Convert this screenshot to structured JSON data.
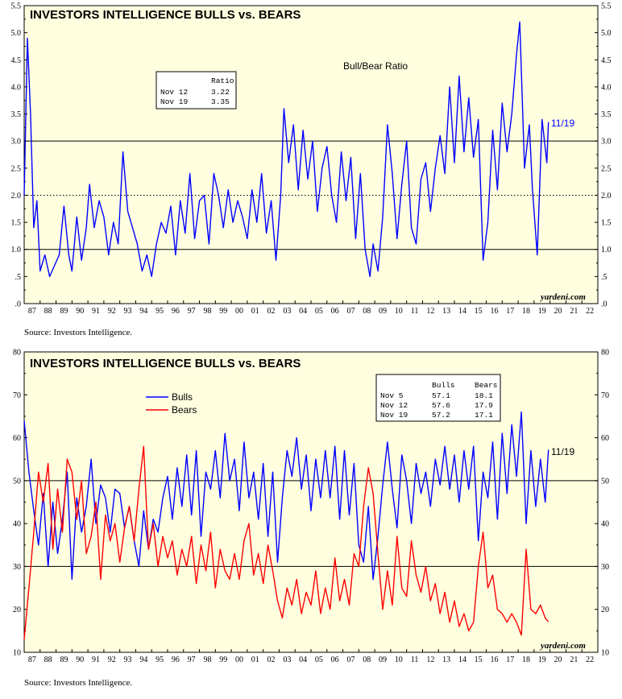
{
  "colors": {
    "background": "#FFFFE0",
    "bulls": "#0000FF",
    "bears": "#FF0000",
    "ratio": "#0000FF",
    "annotation": "#0000FF"
  },
  "chart_data": [
    {
      "type": "line",
      "title": "INVESTORS INTELLIGENCE BULLS vs. BEARS",
      "subtitle": "Bull/Bear Ratio",
      "ylim": [
        0,
        5.5
      ],
      "ytick_labels": [
        ".0",
        ".5",
        "1.0",
        "1.5",
        "2.0",
        "2.5",
        "3.0",
        "3.5",
        "4.0",
        "4.5",
        "5.0",
        "5.5"
      ],
      "xtick_labels": [
        "87",
        "88",
        "89",
        "90",
        "91",
        "92",
        "93",
        "94",
        "95",
        "96",
        "97",
        "98",
        "99",
        "00",
        "01",
        "02",
        "03",
        "04",
        "05",
        "06",
        "07",
        "08",
        "09",
        "10",
        "11",
        "12",
        "13",
        "14",
        "15",
        "16",
        "17",
        "18",
        "19",
        "20",
        "21",
        "22"
      ],
      "reference_lines": [
        1.0,
        2.0,
        3.0
      ],
      "grid": false,
      "series": [
        {
          "name": "Ratio",
          "x": [
            1987.0,
            1987.2,
            1987.4,
            1987.6,
            1987.8,
            1988.0,
            1988.3,
            1988.6,
            1988.9,
            1989.2,
            1989.5,
            1989.8,
            1990.0,
            1990.3,
            1990.6,
            1990.9,
            1991.1,
            1991.4,
            1991.7,
            1992.0,
            1992.3,
            1992.6,
            1992.9,
            1993.2,
            1993.5,
            1993.8,
            1994.1,
            1994.4,
            1994.7,
            1995.0,
            1995.3,
            1995.6,
            1995.9,
            1996.2,
            1996.5,
            1996.8,
            1997.1,
            1997.4,
            1997.7,
            1998.0,
            1998.3,
            1998.6,
            1998.9,
            1999.2,
            1999.5,
            1999.8,
            2000.1,
            2000.4,
            2000.7,
            2001.0,
            2001.3,
            2001.6,
            2001.9,
            2002.2,
            2002.5,
            2002.8,
            2003.1,
            2003.3,
            2003.6,
            2003.9,
            2004.2,
            2004.5,
            2004.8,
            2005.1,
            2005.4,
            2005.7,
            2006.0,
            2006.3,
            2006.6,
            2006.9,
            2007.2,
            2007.5,
            2007.8,
            2008.1,
            2008.4,
            2008.7,
            2008.9,
            2009.2,
            2009.5,
            2009.8,
            2010.1,
            2010.4,
            2010.7,
            2011.0,
            2011.3,
            2011.6,
            2011.9,
            2012.2,
            2012.5,
            2012.8,
            2013.1,
            2013.4,
            2013.7,
            2014.0,
            2014.3,
            2014.6,
            2014.9,
            2015.2,
            2015.5,
            2015.8,
            2016.1,
            2016.4,
            2016.7,
            2017.0,
            2017.3,
            2017.6,
            2017.9,
            2018.1,
            2018.4,
            2018.7,
            2018.9,
            2019.2,
            2019.5,
            2019.8,
            2019.9
          ],
          "values": [
            2.0,
            4.9,
            3.5,
            1.4,
            1.9,
            0.6,
            0.9,
            0.5,
            0.7,
            0.9,
            1.8,
            0.9,
            0.6,
            1.6,
            0.8,
            1.4,
            2.2,
            1.4,
            1.9,
            1.6,
            0.9,
            1.5,
            1.1,
            2.8,
            1.7,
            1.4,
            1.1,
            0.6,
            0.9,
            0.5,
            1.1,
            1.5,
            1.3,
            1.8,
            0.9,
            1.9,
            1.3,
            2.4,
            1.2,
            1.9,
            2.0,
            1.1,
            2.4,
            2.0,
            1.4,
            2.1,
            1.5,
            1.9,
            1.6,
            1.2,
            2.1,
            1.5,
            2.4,
            1.3,
            1.9,
            0.8,
            2.0,
            3.6,
            2.6,
            3.3,
            2.1,
            3.2,
            2.3,
            3.0,
            1.7,
            2.5,
            2.9,
            2.0,
            1.5,
            2.8,
            1.9,
            2.7,
            1.2,
            2.4,
            1.0,
            0.5,
            1.1,
            0.6,
            1.6,
            3.3,
            2.4,
            1.2,
            2.2,
            3.0,
            1.4,
            1.1,
            2.3,
            2.6,
            1.7,
            2.5,
            3.1,
            2.4,
            4.0,
            2.6,
            4.2,
            2.8,
            3.8,
            2.7,
            3.4,
            0.8,
            1.5,
            3.2,
            2.1,
            3.7,
            2.8,
            3.5,
            4.6,
            5.2,
            2.5,
            3.3,
            2.1,
            0.9,
            3.4,
            2.6,
            3.35
          ]
        }
      ],
      "table": {
        "header": "Ratio",
        "rows": [
          [
            "Nov 12",
            "3.22"
          ],
          [
            "Nov 19",
            "3.35"
          ]
        ]
      },
      "end_label": "11/19",
      "credit": "yardeni.com",
      "source": "Source: Investors Intelligence."
    },
    {
      "type": "line",
      "title": "INVESTORS INTELLIGENCE BULLS vs. BEARS",
      "ylim": [
        10,
        80
      ],
      "ytick_labels": [
        "10",
        "20",
        "30",
        "40",
        "50",
        "60",
        "70",
        "80"
      ],
      "xtick_labels": [
        "87",
        "88",
        "89",
        "90",
        "91",
        "92",
        "93",
        "94",
        "95",
        "96",
        "97",
        "98",
        "99",
        "00",
        "01",
        "02",
        "03",
        "04",
        "05",
        "06",
        "07",
        "08",
        "09",
        "10",
        "11",
        "12",
        "13",
        "14",
        "15",
        "16",
        "17",
        "18",
        "19",
        "20",
        "21",
        "22"
      ],
      "reference_lines": [
        30,
        50
      ],
      "grid": false,
      "legend_position": "top-left",
      "series": [
        {
          "name": "Bulls",
          "x": [
            1987.0,
            1987.3,
            1987.6,
            1987.9,
            1988.2,
            1988.5,
            1988.8,
            1989.1,
            1989.4,
            1989.7,
            1990.0,
            1990.3,
            1990.6,
            1990.9,
            1991.2,
            1991.5,
            1991.8,
            1992.1,
            1992.4,
            1992.7,
            1993.0,
            1993.3,
            1993.6,
            1993.9,
            1994.2,
            1994.5,
            1994.8,
            1995.1,
            1995.4,
            1995.7,
            1996.0,
            1996.3,
            1996.6,
            1996.9,
            1997.2,
            1997.5,
            1997.8,
            1998.1,
            1998.4,
            1998.7,
            1999.0,
            1999.3,
            1999.6,
            1999.9,
            2000.2,
            2000.5,
            2000.8,
            2001.1,
            2001.4,
            2001.7,
            2002.0,
            2002.3,
            2002.6,
            2002.9,
            2003.2,
            2003.5,
            2003.8,
            2004.1,
            2004.4,
            2004.7,
            2005.0,
            2005.3,
            2005.6,
            2005.9,
            2006.2,
            2006.5,
            2006.8,
            2007.1,
            2007.4,
            2007.7,
            2008.0,
            2008.3,
            2008.6,
            2008.9,
            2009.2,
            2009.5,
            2009.8,
            2010.1,
            2010.4,
            2010.7,
            2011.0,
            2011.3,
            2011.6,
            2011.9,
            2012.2,
            2012.5,
            2012.8,
            2013.1,
            2013.4,
            2013.7,
            2014.0,
            2014.3,
            2014.6,
            2014.9,
            2015.2,
            2015.5,
            2015.8,
            2016.1,
            2016.4,
            2016.7,
            2017.0,
            2017.3,
            2017.6,
            2017.9,
            2018.2,
            2018.5,
            2018.8,
            2019.1,
            2019.4,
            2019.7,
            2019.9
          ],
          "values": [
            64,
            52,
            43,
            35,
            47,
            30,
            45,
            33,
            41,
            52,
            27,
            46,
            38,
            44,
            55,
            40,
            49,
            46,
            38,
            48,
            47,
            39,
            44,
            36,
            30,
            43,
            34,
            41,
            38,
            46,
            51,
            41,
            53,
            44,
            56,
            42,
            57,
            37,
            52,
            48,
            57,
            46,
            61,
            50,
            55,
            43,
            59,
            46,
            52,
            41,
            54,
            37,
            52,
            31,
            46,
            57,
            51,
            60,
            48,
            56,
            43,
            55,
            46,
            57,
            46,
            58,
            41,
            57,
            42,
            54,
            35,
            31,
            44,
            27,
            37,
            49,
            59,
            48,
            39,
            56,
            50,
            40,
            54,
            47,
            52,
            44,
            55,
            49,
            58,
            48,
            56,
            45,
            57,
            48,
            58,
            36,
            52,
            46,
            59,
            41,
            61,
            47,
            63,
            51,
            66,
            40,
            57,
            44,
            55,
            45,
            57.2
          ]
        },
        {
          "name": "Bears",
          "x": [
            1987.0,
            1987.3,
            1987.6,
            1987.9,
            1988.2,
            1988.5,
            1988.8,
            1989.1,
            1989.4,
            1989.7,
            1990.0,
            1990.3,
            1990.6,
            1990.9,
            1991.2,
            1991.5,
            1991.8,
            1992.1,
            1992.4,
            1992.7,
            1993.0,
            1993.3,
            1993.6,
            1993.9,
            1994.2,
            1994.5,
            1994.8,
            1995.1,
            1995.4,
            1995.7,
            1996.0,
            1996.3,
            1996.6,
            1996.9,
            1997.2,
            1997.5,
            1997.8,
            1998.1,
            1998.4,
            1998.7,
            1999.0,
            1999.3,
            1999.6,
            1999.9,
            2000.2,
            2000.5,
            2000.8,
            2001.1,
            2001.4,
            2001.7,
            2002.0,
            2002.3,
            2002.6,
            2002.9,
            2003.2,
            2003.5,
            2003.8,
            2004.1,
            2004.4,
            2004.7,
            2005.0,
            2005.3,
            2005.6,
            2005.9,
            2006.2,
            2006.5,
            2006.8,
            2007.1,
            2007.4,
            2007.7,
            2008.0,
            2008.3,
            2008.6,
            2008.9,
            2009.2,
            2009.5,
            2009.8,
            2010.1,
            2010.4,
            2010.7,
            2011.0,
            2011.3,
            2011.6,
            2011.9,
            2012.2,
            2012.5,
            2012.8,
            2013.1,
            2013.4,
            2013.7,
            2014.0,
            2014.3,
            2014.6,
            2014.9,
            2015.2,
            2015.5,
            2015.8,
            2016.1,
            2016.4,
            2016.7,
            2017.0,
            2017.3,
            2017.6,
            2017.9,
            2018.2,
            2018.5,
            2018.8,
            2019.1,
            2019.4,
            2019.7,
            2019.9
          ],
          "values": [
            13,
            25,
            38,
            52,
            45,
            54,
            34,
            48,
            38,
            55,
            52,
            41,
            50,
            33,
            37,
            45,
            27,
            42,
            36,
            40,
            31,
            39,
            44,
            36,
            48,
            58,
            34,
            40,
            30,
            37,
            32,
            36,
            28,
            34,
            30,
            37,
            26,
            35,
            29,
            38,
            25,
            34,
            29,
            27,
            33,
            27,
            36,
            40,
            28,
            33,
            26,
            35,
            29,
            22,
            18,
            25,
            21,
            27,
            19,
            24,
            21,
            29,
            19,
            25,
            20,
            32,
            22,
            27,
            21,
            33,
            30,
            44,
            53,
            47,
            33,
            20,
            29,
            21,
            37,
            25,
            23,
            36,
            28,
            24,
            30,
            22,
            26,
            19,
            24,
            17,
            22,
            16,
            19,
            15,
            17,
            30,
            38,
            25,
            28,
            20,
            19,
            17,
            19,
            17,
            14,
            34,
            20,
            19,
            21,
            18,
            17.1
          ]
        }
      ],
      "table": {
        "headers": [
          "Bulls",
          "Bears"
        ],
        "rows": [
          [
            "Nov  5",
            "57.1",
            "18.1"
          ],
          [
            "Nov 12",
            "57.6",
            "17.9"
          ],
          [
            "Nov 19",
            "57.2",
            "17.1"
          ]
        ]
      },
      "end_label": "11/19",
      "credit": "yardeni.com",
      "source": "Source: Investors Intelligence."
    }
  ]
}
